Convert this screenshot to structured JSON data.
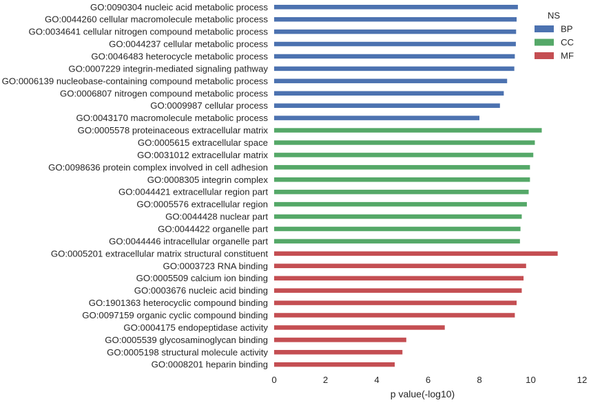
{
  "chart_data": {
    "type": "bar",
    "orientation": "horizontal",
    "title": "",
    "xlabel": "p value(-log10)",
    "ylabel": "",
    "xlim": [
      0,
      12
    ],
    "xticks": [
      "0",
      "2",
      "4",
      "6",
      "8",
      "10",
      "12"
    ],
    "grid": false,
    "legend": {
      "title": "NS",
      "placement": "top-right"
    },
    "series": [
      {
        "name": "BP",
        "color": "#4c72b0",
        "categories": [
          "GO:0090304 nucleic acid metabolic process",
          "GO:0044260 cellular macromolecule metabolic process",
          "GO:0034641 cellular nitrogen compound metabolic process",
          "GO:0044237 cellular metabolic process",
          "GO:0046483 heterocycle metabolic process",
          "GO:0007229 integrin-mediated signaling pathway",
          "GO:0006139 nucleobase-containing compound metabolic process",
          "GO:0006807 nitrogen compound metabolic process",
          "GO:0009987 cellular process",
          "GO:0043170 macromolecule metabolic process"
        ],
        "values": [
          9.5,
          9.45,
          9.43,
          9.42,
          9.38,
          9.36,
          9.08,
          8.95,
          8.8,
          8.0
        ]
      },
      {
        "name": "CC",
        "color": "#55a868",
        "categories": [
          "GO:0005578 proteinaceous extracellular matrix",
          "GO:0005615 extracellular space",
          "GO:0031012 extracellular matrix",
          "GO:0098636 protein complex involved in cell adhesion",
          "GO:0008305 integrin complex",
          "GO:0044421 extracellular region part",
          "GO:0005576 extracellular region",
          "GO:0044428 nuclear part",
          "GO:0044422 organelle part",
          "GO:0044446 intracellular organelle part"
        ],
        "values": [
          10.43,
          10.16,
          10.1,
          9.97,
          9.97,
          9.92,
          9.85,
          9.65,
          9.6,
          9.58
        ]
      },
      {
        "name": "MF",
        "color": "#c44e52",
        "categories": [
          "GO:0005201 extracellular matrix structural constituent",
          "GO:0003723 RNA binding",
          "GO:0005509 calcium ion binding",
          "GO:0003676 nucleic acid binding",
          "GO:1901363 heterocyclic compound binding",
          "GO:0097159 organic cyclic compound binding",
          "GO:0004175 endopeptidase activity",
          "GO:0005539 glycosaminoglycan binding",
          "GO:0005198 structural molecule activity",
          "GO:0008201 heparin binding"
        ],
        "values": [
          11.05,
          9.82,
          9.72,
          9.65,
          9.45,
          9.38,
          6.65,
          5.15,
          5.0,
          4.7
        ]
      }
    ]
  }
}
